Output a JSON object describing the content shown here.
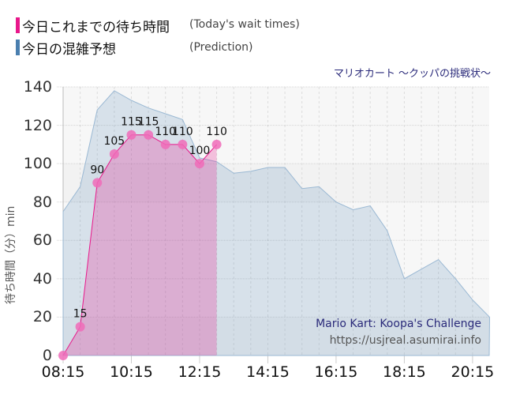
{
  "legend": {
    "items": [
      {
        "label_ja": "今日これまでの待ち時間",
        "label_en": "(Today's wait times)",
        "color": "#e8178a"
      },
      {
        "label_ja": "今日の混雑予想",
        "label_en": "(Prediction)",
        "color": "#4a7faf"
      }
    ]
  },
  "ride_title": "マリオカート ～クッパの挑戦状～",
  "watermark": {
    "name": "Mario Kart: Koopa's Challenge",
    "url": "https://usjreal.asumirai.info"
  },
  "chart_data": {
    "type": "area",
    "title": "マリオカート ～クッパの挑戦状～",
    "xlabel": "",
    "ylabel": "待ち時間（分）min",
    "ylim": [
      0,
      140
    ],
    "yticks": [
      0,
      20,
      40,
      60,
      80,
      100,
      120,
      140
    ],
    "xticks": [
      "08:15",
      "10:15",
      "12:15",
      "14:15",
      "16:15",
      "18:15",
      "20:15"
    ],
    "grid": true,
    "series": [
      {
        "name": "今日これまでの待ち時間 (Today's wait times)",
        "color": "#e8178a",
        "x": [
          "08:15",
          "08:45",
          "09:15",
          "09:45",
          "10:15",
          "10:45",
          "11:15",
          "11:45",
          "12:15",
          "12:45"
        ],
        "values": [
          0,
          15,
          90,
          105,
          115,
          115,
          110,
          110,
          100,
          110
        ]
      },
      {
        "name": "今日の混雑予想 (Prediction)",
        "color": "#4a7faf",
        "x": [
          "08:15",
          "08:45",
          "09:15",
          "09:45",
          "10:15",
          "10:45",
          "11:15",
          "11:45",
          "12:15",
          "12:45",
          "13:15",
          "13:45",
          "14:15",
          "14:45",
          "15:15",
          "15:45",
          "16:15",
          "16:45",
          "17:15",
          "17:45",
          "18:15",
          "18:45",
          "19:15",
          "19:45",
          "20:15",
          "20:45"
        ],
        "values": [
          75,
          88,
          128,
          138,
          133,
          129,
          126,
          123,
          103,
          101,
          95,
          96,
          98,
          98,
          87,
          88,
          80,
          76,
          78,
          65,
          40,
          45,
          50,
          40,
          29,
          20
        ]
      }
    ]
  }
}
